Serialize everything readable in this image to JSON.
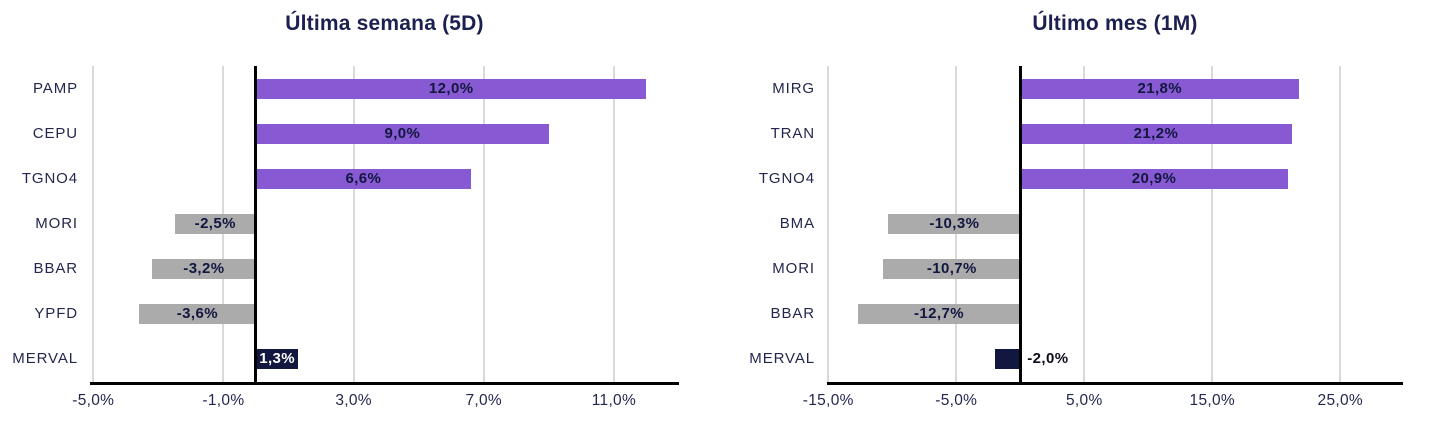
{
  "colors": {
    "positive_bar": "#875ad3",
    "negative_bar": "#ababab",
    "index_bar": "#11173f",
    "bar_label": "#131740",
    "bar_label_on_dark": "#ffffff",
    "title_text": "#1c2050",
    "axis_text": "#23274e",
    "gridline": "#d9d9d9",
    "zero_line": "#000000"
  },
  "chart_data": [
    {
      "type": "bar",
      "orientation": "horizontal",
      "title": "Última semana (5D)",
      "categories": [
        "PAMP",
        "CEPU",
        "TGNO4",
        "MORI",
        "BBAR",
        "YPFD",
        "MERVAL"
      ],
      "values": [
        12.0,
        9.0,
        6.6,
        -2.5,
        -3.2,
        -3.6,
        1.3
      ],
      "value_labels": [
        "12,0%",
        "9,0%",
        "6,6%",
        "-2,5%",
        "-3,2%",
        "-3,6%",
        "1,3%"
      ],
      "highlight_category": "MERVAL",
      "xticks": [
        -5,
        -1,
        3,
        7,
        11
      ],
      "xtick_labels": [
        "-5,0%",
        "-1,0%",
        "3,0%",
        "7,0%",
        "11,0%"
      ],
      "xlim": [
        -5.1,
        13.0
      ],
      "grid": true,
      "legend": null
    },
    {
      "type": "bar",
      "orientation": "horizontal",
      "title": "Último mes (1M)",
      "categories": [
        "MIRG",
        "TRAN",
        "TGNO4",
        "BMA",
        "MORI",
        "BBAR",
        "MERVAL"
      ],
      "values": [
        21.8,
        21.2,
        20.9,
        -10.3,
        -10.7,
        -12.7,
        -2.0
      ],
      "value_labels": [
        "21,8%",
        "21,2%",
        "20,9%",
        "-10,3%",
        "-10,7%",
        "-12,7%",
        "-2,0%"
      ],
      "highlight_category": "MERVAL",
      "xticks": [
        -15,
        -5,
        5,
        15,
        25
      ],
      "xtick_labels": [
        "-15,0%",
        "-5,0%",
        "5,0%",
        "15,0%",
        "25,0%"
      ],
      "xlim": [
        -15.1,
        29.9
      ],
      "grid": true,
      "legend": null
    }
  ]
}
